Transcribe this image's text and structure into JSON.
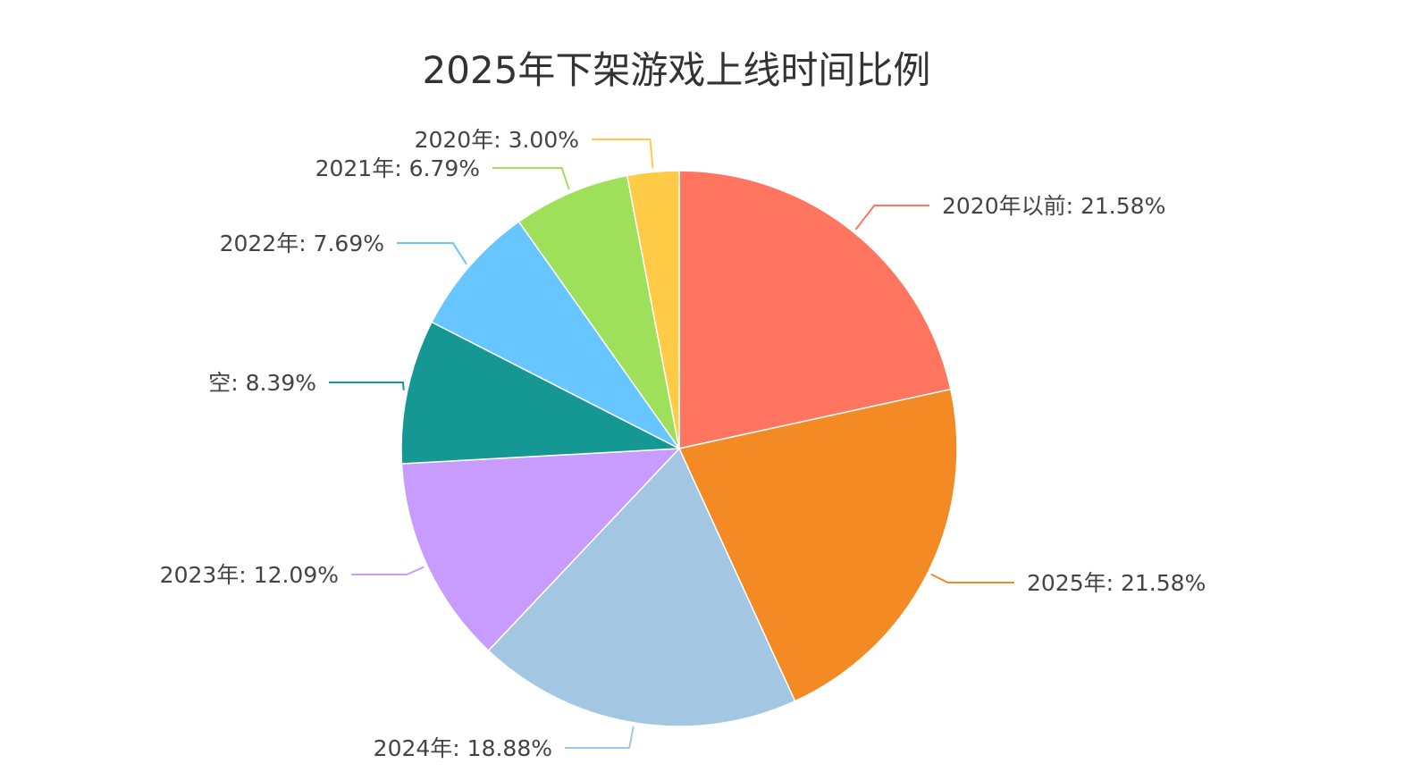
{
  "chart_data": {
    "type": "pie",
    "title": "2025年下架游戏上线时间比例",
    "slices": [
      {
        "name": "2020年以前",
        "value": 21.58,
        "label": "2020年以前: 21.58%",
        "color": "#ff7560"
      },
      {
        "name": "2025年",
        "value": 21.58,
        "label": "2025年: 21.58%",
        "color": "#f48a23"
      },
      {
        "name": "2024年",
        "value": 18.88,
        "label": "2024年: 18.88%",
        "color": "#a3c7e2"
      },
      {
        "name": "2023年",
        "value": 12.09,
        "label": "2023年: 12.09%",
        "color": "#c89bff"
      },
      {
        "name": "空",
        "value": 8.39,
        "label": "空: 8.39%",
        "color": "#159794"
      },
      {
        "name": "2022年",
        "value": 7.69,
        "label": "2022年: 7.69%",
        "color": "#67c6ff"
      },
      {
        "name": "2021年",
        "value": 6.79,
        "label": "2021年: 6.79%",
        "color": "#9fe05a"
      },
      {
        "name": "2020年",
        "value": 3.0,
        "label": "2020年: 3.00%",
        "color": "#ffcb47"
      }
    ],
    "legend": "none",
    "start_angle": "12 o'clock",
    "direction": "clockwise"
  }
}
